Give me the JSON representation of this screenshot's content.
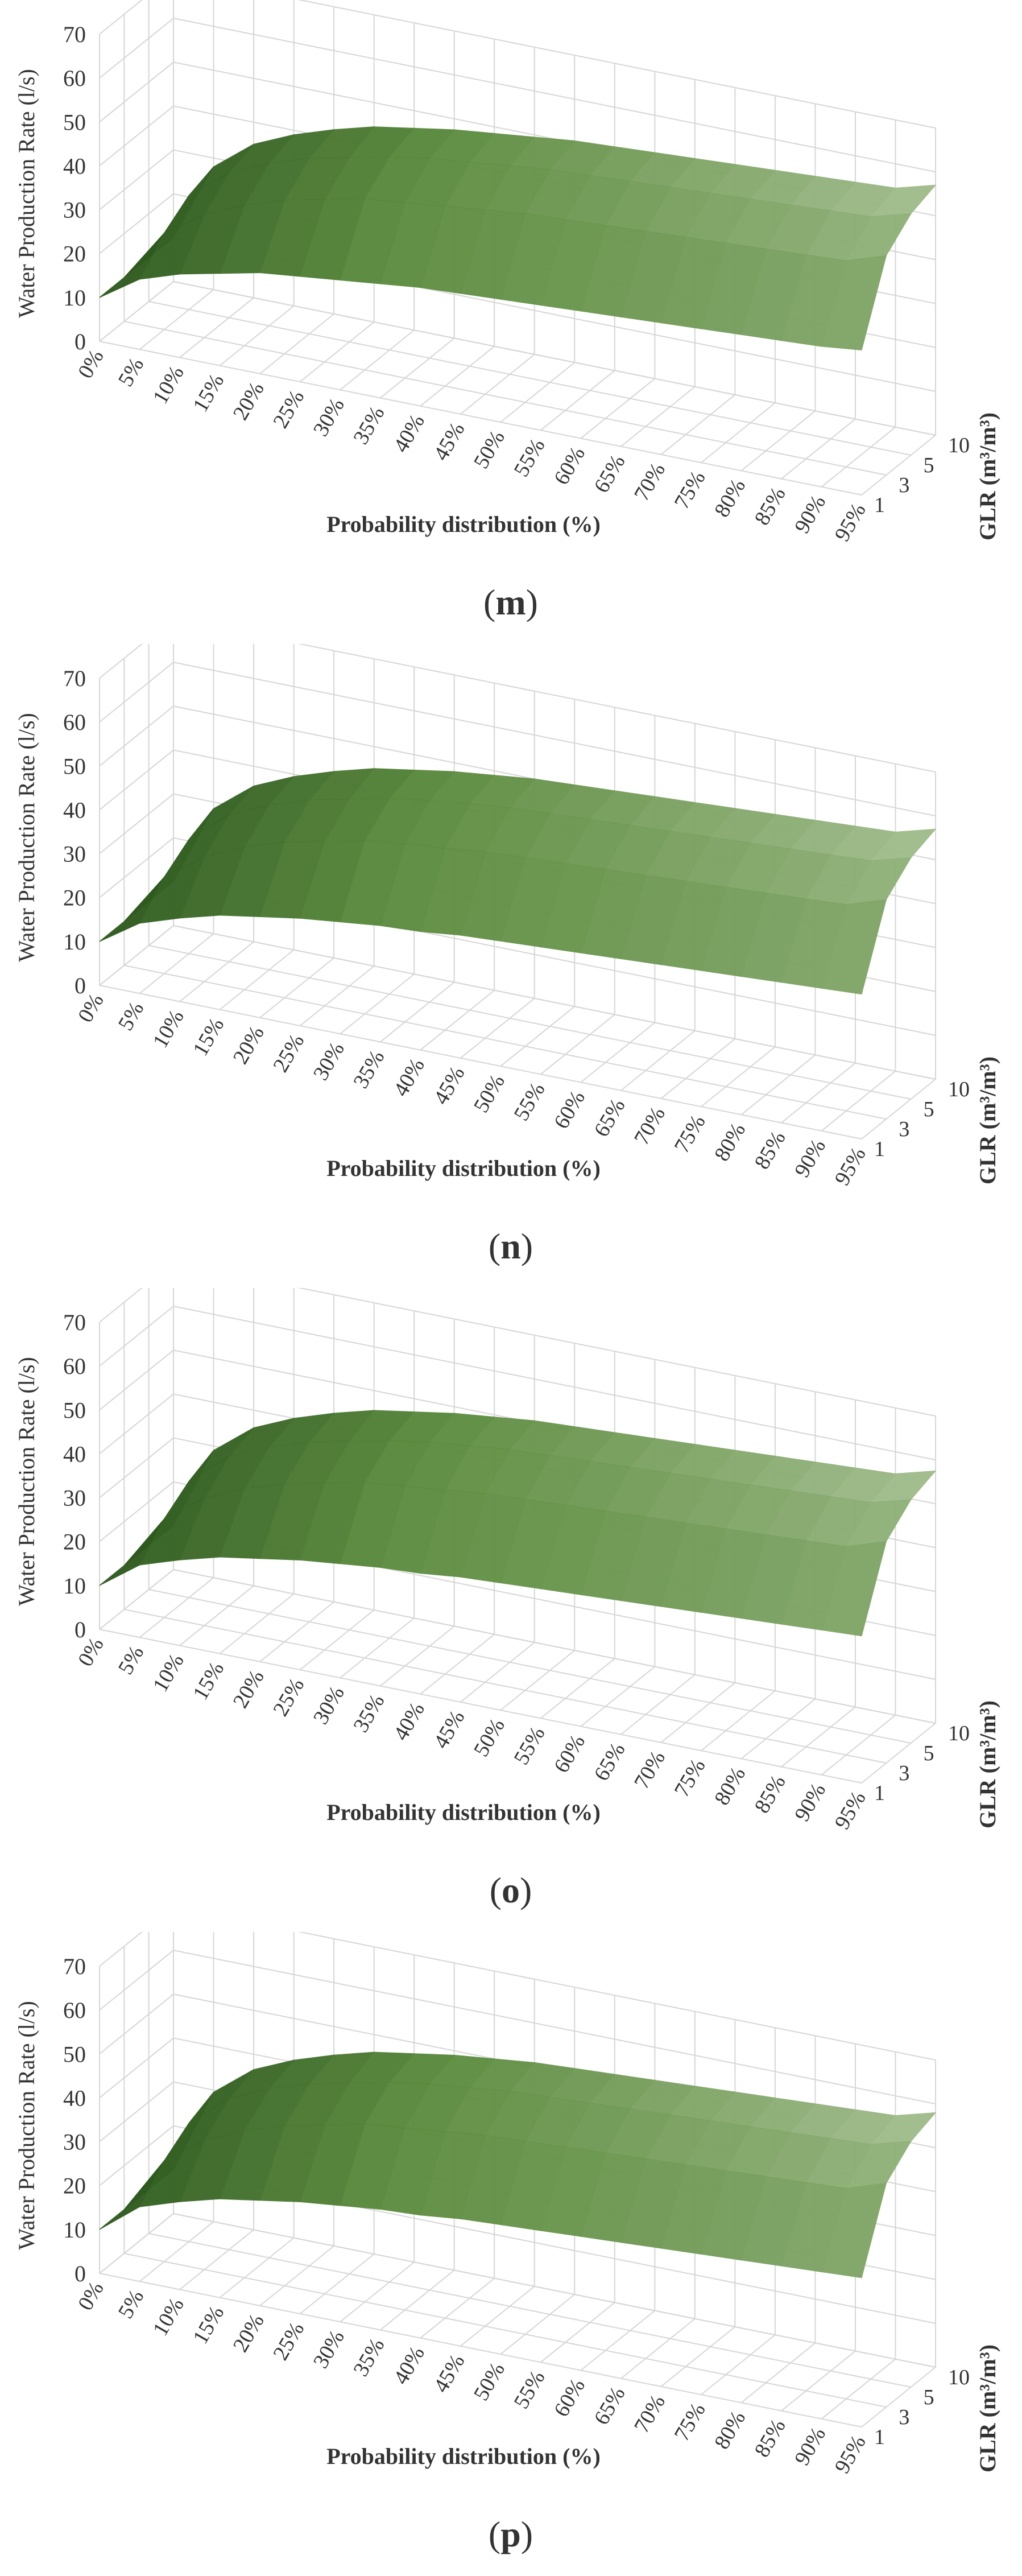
{
  "panels": [
    {
      "label": "(m)",
      "label_parts": [
        "(",
        "m",
        ")"
      ]
    },
    {
      "label": "(n)",
      "label_parts": [
        "(",
        "n",
        ")"
      ]
    },
    {
      "label": "(o)",
      "label_parts": [
        "(",
        "o",
        ")"
      ]
    },
    {
      "label": "(p)",
      "label_parts": [
        "(",
        "p",
        ")"
      ]
    }
  ],
  "colors": {
    "grid": "#d6d6d6",
    "surface_dark": "#2f5a1f",
    "surface_mid": "#5a8a3c",
    "surface_light": "#a9c296",
    "text": "#333333"
  },
  "chart_data": [
    {
      "type": "surface",
      "panel": "m",
      "title": "",
      "xlabel": "Probability distribution (%)",
      "ylabel": "Water Production Rate (l/s)",
      "zlabel": "GLR (m³/m³)",
      "x": [
        "0%",
        "5%",
        "10%",
        "15%",
        "20%",
        "25%",
        "30%",
        "35%",
        "40%",
        "45%",
        "50%",
        "55%",
        "60%",
        "65%",
        "70%",
        "75%",
        "80%",
        "85%",
        "90%",
        "95%"
      ],
      "z": [
        "1",
        "3",
        "5",
        "10"
      ],
      "ylim": [
        0,
        70
      ],
      "yticks": [
        0,
        10,
        20,
        30,
        40,
        50,
        60,
        70
      ],
      "series": [
        {
          "name": "1",
          "values": [
            10,
            16,
            19,
            21,
            23,
            24,
            25,
            26,
            27,
            27.5,
            28,
            28.5,
            29,
            29.5,
            30,
            30.5,
            31,
            31.5,
            32,
            33
          ]
        },
        {
          "name": "3",
          "values": [
            10,
            22,
            28,
            32,
            35,
            37,
            39,
            40,
            41,
            42,
            43,
            43.5,
            44,
            44.5,
            45,
            45.5,
            46,
            46.5,
            47,
            50
          ]
        },
        {
          "name": "5",
          "values": [
            10,
            26,
            33,
            37,
            40,
            42,
            44,
            45.5,
            46.5,
            47.5,
            48.5,
            49,
            49.5,
            50,
            50.5,
            51,
            51.5,
            52,
            52.5,
            55
          ]
        },
        {
          "name": "10",
          "values": [
            10,
            28,
            35,
            39,
            42,
            44.5,
            46,
            47.5,
            48.5,
            49.5,
            50.5,
            51,
            51.5,
            52,
            52.5,
            53,
            53.5,
            54,
            54.5,
            57
          ]
        }
      ]
    },
    {
      "type": "surface",
      "panel": "n",
      "title": "",
      "xlabel": "Probability distribution (%)",
      "ylabel": "Water Production Rate (l/s)",
      "zlabel": "GLR (m³/m³)",
      "x": [
        "0%",
        "5%",
        "10%",
        "15%",
        "20%",
        "25%",
        "30%",
        "35%",
        "40%",
        "45%",
        "50%",
        "55%",
        "60%",
        "65%",
        "70%",
        "75%",
        "80%",
        "85%",
        "90%",
        "95%"
      ],
      "z": [
        "1",
        "3",
        "5",
        "10"
      ],
      "ylim": [
        0,
        70
      ],
      "yticks": [
        0,
        10,
        20,
        30,
        40,
        50,
        60,
        70
      ],
      "series": [
        {
          "name": "1",
          "values": [
            10,
            16,
            19,
            21.5,
            23,
            24.5,
            25.5,
            26.5,
            27,
            28,
            28.5,
            29,
            29.5,
            30,
            30.5,
            31,
            31.5,
            32,
            32.5,
            33
          ]
        },
        {
          "name": "3",
          "values": [
            10,
            22,
            28.5,
            32.5,
            35.5,
            37.5,
            39.5,
            40.5,
            41.5,
            42.5,
            43,
            43.5,
            44,
            44.5,
            45,
            45.5,
            46,
            46.5,
            47,
            50
          ]
        },
        {
          "name": "5",
          "values": [
            10,
            26,
            33.5,
            37.5,
            40.5,
            42.5,
            44.5,
            46,
            47,
            48,
            48.5,
            49,
            49.5,
            50,
            50.5,
            51,
            51.5,
            52,
            52.5,
            55
          ]
        },
        {
          "name": "10",
          "values": [
            10,
            28.5,
            35.5,
            39.5,
            42.5,
            45,
            46.5,
            48,
            49,
            50,
            50.5,
            51,
            51.5,
            52,
            52.5,
            53,
            53.5,
            54,
            54.5,
            57
          ]
        }
      ]
    },
    {
      "type": "surface",
      "panel": "o",
      "title": "",
      "xlabel": "Probability distribution (%)",
      "ylabel": "Water Production Rate (l/s)",
      "zlabel": "GLR (m³/m³)",
      "x": [
        "0%",
        "5%",
        "10%",
        "15%",
        "20%",
        "25%",
        "30%",
        "35%",
        "40%",
        "45%",
        "50%",
        "55%",
        "60%",
        "65%",
        "70%",
        "75%",
        "80%",
        "85%",
        "90%",
        "95%"
      ],
      "z": [
        "1",
        "3",
        "5",
        "10"
      ],
      "ylim": [
        0,
        70
      ],
      "yticks": [
        0,
        10,
        20,
        30,
        40,
        50,
        60,
        70
      ],
      "series": [
        {
          "name": "1",
          "values": [
            10,
            16.5,
            19.5,
            22,
            23.5,
            25,
            26,
            27,
            27.5,
            28.5,
            29,
            29.5,
            30,
            30.5,
            31,
            31.5,
            32,
            32.5,
            33,
            33.5
          ]
        },
        {
          "name": "3",
          "values": [
            10,
            22.5,
            29,
            33,
            36,
            38,
            40,
            41,
            42,
            43,
            43.5,
            44,
            44.5,
            45,
            45.5,
            46,
            46.5,
            47,
            47.5,
            50.5
          ]
        },
        {
          "name": "5",
          "values": [
            10,
            26.5,
            34,
            38,
            41,
            43,
            45,
            46.5,
            47.5,
            48.5,
            49,
            49.5,
            50,
            50.5,
            51,
            51.5,
            52,
            52.5,
            53,
            55.5
          ]
        },
        {
          "name": "10",
          "values": [
            10,
            29,
            36,
            40,
            43,
            45.5,
            47,
            48.5,
            49.5,
            50.5,
            51,
            51.5,
            52,
            52.5,
            53,
            53.5,
            54,
            54.5,
            55,
            57.5
          ]
        }
      ]
    },
    {
      "type": "surface",
      "panel": "p",
      "title": "",
      "xlabel": "Probability distribution (%)",
      "ylabel": "Water Production Rate (l/s)",
      "zlabel": "GLR (m³/m³)",
      "x": [
        "0%",
        "5%",
        "10%",
        "15%",
        "20%",
        "25%",
        "30%",
        "35%",
        "40%",
        "45%",
        "50%",
        "55%",
        "60%",
        "65%",
        "70%",
        "75%",
        "80%",
        "85%",
        "90%",
        "95%"
      ],
      "z": [
        "1",
        "3",
        "5",
        "10"
      ],
      "ylim": [
        0,
        70
      ],
      "yticks": [
        0,
        10,
        20,
        30,
        40,
        50,
        60,
        70
      ],
      "series": [
        {
          "name": "1",
          "values": [
            10,
            17,
            20,
            22.5,
            24,
            25.5,
            26.5,
            27.5,
            28,
            29,
            29.5,
            30,
            30.5,
            31,
            31.5,
            32,
            32.5,
            33,
            33.5,
            34
          ]
        },
        {
          "name": "3",
          "values": [
            10,
            23,
            29.5,
            33.5,
            36.5,
            38.5,
            40.5,
            41.5,
            42.5,
            43.5,
            44,
            44.5,
            45,
            45.5,
            46,
            46.5,
            47,
            47.5,
            48,
            51
          ]
        },
        {
          "name": "5",
          "values": [
            10,
            27,
            34.5,
            38.5,
            41.5,
            43.5,
            45.5,
            47,
            48,
            49,
            49.5,
            50,
            50.5,
            51,
            51.5,
            52,
            52.5,
            53,
            53.5,
            56
          ]
        },
        {
          "name": "10",
          "values": [
            10,
            29.5,
            36.5,
            40.5,
            43.5,
            46,
            47.5,
            49,
            50,
            51,
            51.5,
            52,
            52.5,
            53,
            53.5,
            54,
            54.5,
            55,
            55.5,
            58
          ]
        }
      ]
    }
  ]
}
